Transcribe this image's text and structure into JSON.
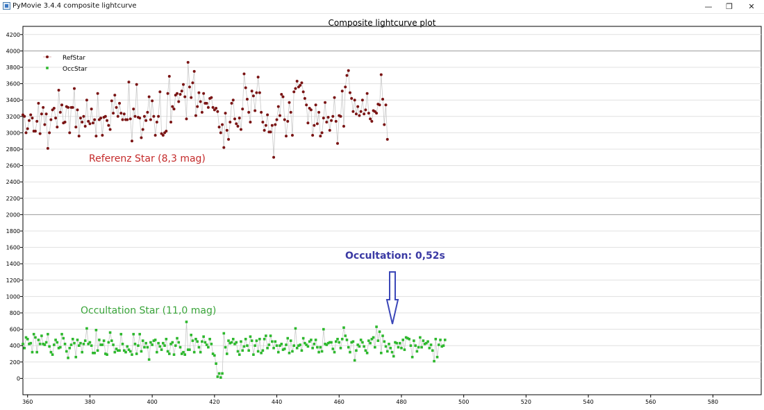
{
  "window": {
    "title": "PyMovie 3.4.4 composite lightcurve",
    "min_icon": "minimize-icon",
    "max_icon": "restore-icon",
    "close_icon": "close-icon"
  },
  "annotations": {
    "ref": "Referenz Star   (8,3 mag)",
    "occ": "Occultation Star   (11,0 mag)",
    "callout": "Occultation:   0,52s"
  },
  "colors": {
    "ref": "#7a1414",
    "occ": "#2db82d",
    "line": "#c8c8c8",
    "callout": "#3b3aa4",
    "arrow": "#3b47b8"
  },
  "chart_data": {
    "type": "scatter",
    "title": "Composite lightcurve plot",
    "xlabel": "",
    "ylabel": "",
    "xlim": [
      358.5,
      595.5
    ],
    "ylim": [
      -200,
      4300
    ],
    "xticks": [
      360,
      380,
      400,
      420,
      440,
      460,
      480,
      500,
      520,
      540,
      560,
      580
    ],
    "yticks": [
      0,
      200,
      400,
      600,
      800,
      1000,
      1200,
      1400,
      1600,
      1800,
      2000,
      2200,
      2400,
      2600,
      2800,
      3000,
      3200,
      3400,
      3600,
      3800,
      4000,
      4200
    ],
    "legend_position": "top-left",
    "grid": true,
    "x_start": 358.5,
    "x_step": 0.5,
    "series": [
      {
        "name": "RefStar",
        "values": [
          3220,
          3200,
          3000,
          3050,
          3150,
          3220,
          3180,
          3020,
          3020,
          3140,
          3360,
          2990,
          3230,
          3310,
          3100,
          3230,
          2810,
          3000,
          3160,
          3280,
          3300,
          3180,
          3070,
          3520,
          3250,
          3340,
          3120,
          3130,
          3320,
          3310,
          3000,
          3310,
          3310,
          3540,
          3070,
          3280,
          2960,
          3180,
          3130,
          3200,
          3080,
          3400,
          3140,
          3110,
          3290,
          3120,
          3160,
          2960,
          3480,
          3160,
          3180,
          2970,
          3190,
          3200,
          3150,
          3090,
          3040,
          3390,
          3240,
          3460,
          3310,
          3200,
          3360,
          3240,
          3160,
          3230,
          3160,
          3160,
          3620,
          3170,
          2900,
          3290,
          3200,
          3590,
          3190,
          3180,
          2940,
          3040,
          3200,
          3150,
          3250,
          3440,
          3160,
          3390,
          3200,
          2970,
          3130,
          3200,
          3500,
          2990,
          2970,
          3000,
          3020,
          3480,
          3690,
          3130,
          3320,
          3290,
          3460,
          3480,
          3380,
          3470,
          3510,
          3590,
          3440,
          3170,
          3860,
          3560,
          3430,
          3610,
          3750,
          3210,
          3320,
          3490,
          3380,
          3250,
          3480,
          3360,
          3360,
          3310,
          3420,
          3430,
          3310,
          3280,
          3300,
          3260,
          3070,
          3000,
          3100,
          2820,
          3240,
          3030,
          2920,
          3130,
          3360,
          3400,
          3170,
          3110,
          3080,
          3180,
          3040,
          3290,
          3720,
          3550,
          3410,
          3250,
          3130,
          3510,
          3450,
          3270,
          3490,
          3680,
          3490,
          3250,
          3130,
          3030,
          3090,
          3220,
          3010,
          3010,
          3090,
          2700,
          3100,
          3160,
          3320,
          3210,
          3470,
          3440,
          3160,
          2960,
          3140,
          3370,
          3250,
          2970,
          3500,
          3540,
          3630,
          3560,
          3580,
          3610,
          3500,
          3420,
          3340,
          3120,
          3300,
          3280,
          2970,
          3090,
          3340,
          3110,
          3250,
          2960,
          3000,
          3180,
          3370,
          3130,
          3190,
          3030,
          3150,
          3200,
          3430,
          3140,
          2870,
          3210,
          3200,
          3510,
          3080,
          3560,
          3700,
          3760,
          3490,
          3420,
          3260,
          3400,
          3230,
          3320,
          3210,
          3260,
          3400,
          3230,
          3280,
          3480,
          3240,
          3170,
          3140,
          3270,
          3260,
          3240,
          3350,
          3340,
          3710,
          3410,
          3100,
          3340,
          2920
        ]
      },
      {
        "name": "OccStar",
        "values": [
          420,
          370,
          500,
          480,
          420,
          430,
          320,
          540,
          500,
          320,
          470,
          420,
          520,
          420,
          410,
          440,
          540,
          390,
          320,
          290,
          410,
          470,
          440,
          370,
          380,
          540,
          490,
          420,
          330,
          250,
          370,
          410,
          480,
          430,
          260,
          470,
          400,
          430,
          320,
          420,
          460,
          610,
          420,
          440,
          400,
          310,
          310,
          590,
          340,
          470,
          410,
          410,
          460,
          300,
          290,
          440,
          560,
          460,
          410,
          320,
          360,
          340,
          340,
          540,
          420,
          340,
          320,
          390,
          350,
          330,
          290,
          540,
          420,
          300,
          400,
          540,
          330,
          460,
          380,
          430,
          380,
          230,
          440,
          410,
          460,
          470,
          320,
          430,
          390,
          350,
          430,
          400,
          480,
          330,
          300,
          420,
          440,
          290,
          400,
          490,
          440,
          380,
          300,
          320,
          290,
          690,
          350,
          350,
          530,
          460,
          320,
          480,
          450,
          380,
          320,
          450,
          510,
          440,
          410,
          380,
          480,
          420,
          300,
          280,
          180,
          20,
          60,
          10,
          60,
          550,
          380,
          300,
          460,
          430,
          440,
          480,
          420,
          440,
          330,
          290,
          450,
          340,
          390,
          480,
          400,
          340,
          510,
          460,
          290,
          400,
          460,
          330,
          480,
          310,
          340,
          480,
          520,
          370,
          410,
          520,
          450,
          370,
          450,
          400,
          320,
          400,
          420,
          350,
          360,
          410,
          490,
          310,
          460,
          330,
          400,
          610,
          370,
          400,
          410,
          340,
          490,
          430,
          410,
          390,
          450,
          470,
          370,
          420,
          470,
          380,
          320,
          380,
          330,
          600,
          420,
          410,
          430,
          440,
          440,
          360,
          320,
          450,
          480,
          440,
          370,
          480,
          620,
          520,
          470,
          380,
          320,
          440,
          450,
          220,
          340,
          410,
          390,
          470,
          440,
          390,
          340,
          310,
          460,
          430,
          480,
          500,
          380,
          630,
          460,
          570,
          310,
          520,
          450,
          390,
          330,
          420,
          370,
          320,
          270,
          440,
          430,
          380,
          430,
          370,
          470,
          350,
          500,
          490,
          480,
          400,
          260,
          460,
          400,
          330,
          380,
          500,
          380,
          460,
          420,
          430,
          450,
          370,
          410,
          340,
          210,
          480,
          260,
          410,
          470,
          390,
          400,
          470
        ]
      }
    ]
  }
}
